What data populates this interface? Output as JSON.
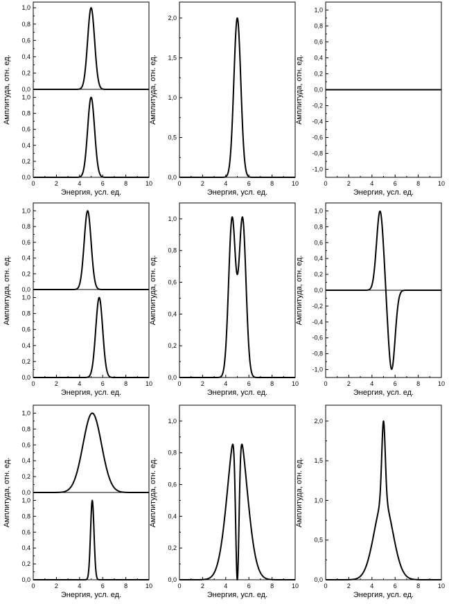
{
  "chart_data": [
    {
      "id": "r1c1",
      "type": "line",
      "stacked": true,
      "xlabel": "Энергия, усл. ед.",
      "ylabel": "Амплитуда, отн. ед.",
      "xlim": [
        0,
        10
      ],
      "xticks": [
        0,
        2,
        4,
        6,
        8,
        10
      ],
      "xticklabels": [
        "0",
        "2",
        "4",
        "6",
        "8",
        "10"
      ],
      "panels": [
        {
          "ylim": [
            0,
            1.07
          ],
          "yticks": [
            0,
            0.2,
            0.4,
            0.6,
            0.8,
            1.0
          ],
          "yticklabels": [
            "0,0",
            "0,2",
            "0,4",
            "0,6",
            "0,8",
            "1,0"
          ],
          "series": [
            {
              "kind": "gaussian",
              "center": 5.0,
              "sigma": 0.3,
              "amplitude": 1.0
            }
          ]
        },
        {
          "ylim": [
            0,
            1.1
          ],
          "yticks": [
            0,
            0.2,
            0.4,
            0.6,
            0.8,
            1.0
          ],
          "yticklabels": [
            "0,0",
            "0,2",
            "0,4",
            "0,6",
            "0,8",
            "1,0"
          ],
          "series": [
            {
              "kind": "gaussian",
              "center": 5.0,
              "sigma": 0.3,
              "amplitude": 1.0
            }
          ]
        }
      ]
    },
    {
      "id": "r1c2",
      "type": "line",
      "xlabel": "Энергия, усл. ед.",
      "ylabel": "Амплитуда, отн. ед.",
      "xlim": [
        0,
        10
      ],
      "xticks": [
        0,
        2,
        4,
        6,
        8,
        10
      ],
      "xticklabels": [
        "0",
        "2",
        "4",
        "6",
        "8",
        "10"
      ],
      "ylim": [
        0,
        2.2
      ],
      "yticks": [
        0,
        0.5,
        1.0,
        1.5,
        2.0
      ],
      "yticklabels": [
        "0,0",
        "0,5",
        "1,0",
        "1,5",
        "2,0"
      ],
      "series": [
        {
          "kind": "gaussian",
          "center": 5.0,
          "sigma": 0.3,
          "amplitude": 2.0
        }
      ]
    },
    {
      "id": "r1c3",
      "type": "line",
      "xlabel": "Энергия, усл. ед.",
      "ylabel": "Амплитуда, отн. ед.",
      "xlim": [
        0,
        10
      ],
      "xticks": [
        0,
        2,
        4,
        6,
        8,
        10
      ],
      "xticklabels": [
        "0",
        "2",
        "4",
        "6",
        "8",
        "10"
      ],
      "ylim": [
        -1.1,
        1.1
      ],
      "yticks": [
        -1.0,
        -0.8,
        -0.6,
        -0.4,
        -0.2,
        0,
        0.2,
        0.4,
        0.6,
        0.8,
        1.0
      ],
      "yticklabels": [
        "-1,0",
        "-0,8",
        "-0,6",
        "-0,4",
        "-0,2",
        "0,0",
        "0,2",
        "0,4",
        "0,6",
        "0,8",
        "1,0"
      ],
      "series": [
        {
          "kind": "constant",
          "value": 0
        }
      ]
    },
    {
      "id": "r2c1",
      "type": "line",
      "stacked": true,
      "xlabel": "Энергия, усл. ед.",
      "ylabel": "Амплитуда, отн. ед.",
      "xlim": [
        0,
        10
      ],
      "xticks": [
        0,
        2,
        4,
        6,
        8,
        10
      ],
      "xticklabels": [
        "0",
        "2",
        "4",
        "6",
        "8",
        "10"
      ],
      "panels": [
        {
          "ylim": [
            0,
            1.1
          ],
          "yticks": [
            0,
            0.2,
            0.4,
            0.6,
            0.8,
            1.0
          ],
          "yticklabels": [
            "0,0",
            "0,2",
            "0,4",
            "0,6",
            "0,8",
            "1,0"
          ],
          "series": [
            {
              "kind": "gaussian",
              "center": 4.7,
              "sigma": 0.3,
              "amplitude": 1.0
            }
          ]
        },
        {
          "ylim": [
            0,
            1.1
          ],
          "yticks": [
            0,
            0.2,
            0.4,
            0.6,
            0.8,
            1.0
          ],
          "yticklabels": [
            "0,0",
            "0,2",
            "0,4",
            "0,6",
            "0,8",
            "1,0"
          ],
          "series": [
            {
              "kind": "gaussian",
              "center": 5.7,
              "sigma": 0.3,
              "amplitude": 1.0
            }
          ]
        }
      ]
    },
    {
      "id": "r2c2",
      "type": "line",
      "xlabel": "Энергия, усл. ед.",
      "ylabel": "Амплитуда, отн. ед.",
      "xlim": [
        0,
        10
      ],
      "xticks": [
        0,
        2,
        4,
        6,
        8,
        10
      ],
      "xticklabels": [
        "0",
        "2",
        "4",
        "6",
        "8",
        "10"
      ],
      "ylim": [
        0,
        1.1
      ],
      "yticks": [
        0,
        0.2,
        0.4,
        0.6,
        0.8,
        1.0
      ],
      "yticklabels": [
        "0,0",
        "0,2",
        "0,4",
        "0,6",
        "0,8",
        "1,0"
      ],
      "series": [
        {
          "kind": "sum_gaussians",
          "components": [
            {
              "center": 4.55,
              "sigma": 0.3,
              "amplitude": 1.0
            },
            {
              "center": 5.45,
              "sigma": 0.3,
              "amplitude": 1.0
            }
          ]
        }
      ]
    },
    {
      "id": "r2c3",
      "type": "line",
      "xlabel": "Энергия, усл. ед.",
      "ylabel": "Амплитуда, отн. ед.",
      "xlim": [
        0,
        10
      ],
      "xticks": [
        0,
        2,
        4,
        6,
        8,
        10
      ],
      "xticklabels": [
        "0",
        "2",
        "4",
        "6",
        "8",
        "10"
      ],
      "ylim": [
        -1.1,
        1.1
      ],
      "yticks": [
        -1.0,
        -0.8,
        -0.6,
        -0.4,
        -0.2,
        0,
        0.2,
        0.4,
        0.6,
        0.8,
        1.0
      ],
      "yticklabels": [
        "-1,0",
        "-0,8",
        "-0,6",
        "-0,4",
        "-0,2",
        "0,0",
        "0,2",
        "0,4",
        "0,6",
        "0,8",
        "1,0"
      ],
      "series": [
        {
          "kind": "sum_gaussians",
          "components": [
            {
              "center": 4.7,
              "sigma": 0.3,
              "amplitude": 1.0
            },
            {
              "center": 5.7,
              "sigma": 0.3,
              "amplitude": -1.0
            }
          ]
        }
      ]
    },
    {
      "id": "r3c1",
      "type": "line",
      "stacked": true,
      "xlabel": "Энергия, усл. ед.",
      "ylabel": "Амплитуда, отн. ед.",
      "xlim": [
        0,
        10
      ],
      "xticks": [
        0,
        2,
        4,
        6,
        8,
        10
      ],
      "xticklabels": [
        "0",
        "2",
        "4",
        "6",
        "8",
        "10"
      ],
      "panels": [
        {
          "ylim": [
            0,
            1.1
          ],
          "yticks": [
            0,
            0.2,
            0.4,
            0.6,
            0.8,
            1.0
          ],
          "yticklabels": [
            "0,0",
            "0,2",
            "0,4",
            "0,6",
            "0,8",
            "1,0"
          ],
          "series": [
            {
              "kind": "gaussian",
              "center": 5.1,
              "sigma": 0.8,
              "amplitude": 1.0
            }
          ]
        },
        {
          "ylim": [
            0,
            1.1
          ],
          "yticks": [
            0,
            0.2,
            0.4,
            0.6,
            0.8,
            1.0
          ],
          "yticklabels": [
            "0,0",
            "0,2",
            "0,4",
            "0,6",
            "0,8",
            "1,0"
          ],
          "series": [
            {
              "kind": "gaussian",
              "center": 5.1,
              "sigma": 0.15,
              "amplitude": 1.0
            }
          ]
        }
      ]
    },
    {
      "id": "r3c2",
      "type": "line",
      "xlabel": "Энергия, усл. ед.",
      "ylabel": "Амплитуда, отн. ед.",
      "xlim": [
        0,
        10
      ],
      "xticks": [
        0,
        2,
        4,
        6,
        8,
        10
      ],
      "xticklabels": [
        "0",
        "2",
        "4",
        "6",
        "8",
        "10"
      ],
      "ylim": [
        0,
        1.1
      ],
      "yticks": [
        0,
        0.2,
        0.4,
        0.6,
        0.8,
        1.0
      ],
      "yticklabels": [
        "0,0",
        "0,2",
        "0,4",
        "0,6",
        "0,8",
        "1,0"
      ],
      "series": [
        {
          "kind": "diff_gaussians_abs",
          "components": [
            {
              "center": 5.0,
              "sigma": 0.8,
              "amplitude": 1.0
            },
            {
              "center": 5.0,
              "sigma": 0.15,
              "amplitude": 1.0
            }
          ]
        }
      ]
    },
    {
      "id": "r3c3",
      "type": "line",
      "xlabel": "Энергия, усл. ед.",
      "ylabel": "Амплитуда, отн. ед.",
      "xlim": [
        0,
        10
      ],
      "xticks": [
        0,
        2,
        4,
        6,
        8,
        10
      ],
      "xticklabels": [
        "0",
        "2",
        "4",
        "6",
        "8",
        "10"
      ],
      "ylim": [
        0,
        2.2
      ],
      "yticks": [
        0,
        0.5,
        1.0,
        1.5,
        2.0
      ],
      "yticklabels": [
        "0,0",
        "0,5",
        "1,0",
        "1,5",
        "2,0"
      ],
      "series": [
        {
          "kind": "sum_gaussians",
          "components": [
            {
              "center": 5.0,
              "sigma": 0.8,
              "amplitude": 1.0
            },
            {
              "center": 5.0,
              "sigma": 0.15,
              "amplitude": 1.0
            }
          ]
        }
      ]
    }
  ]
}
